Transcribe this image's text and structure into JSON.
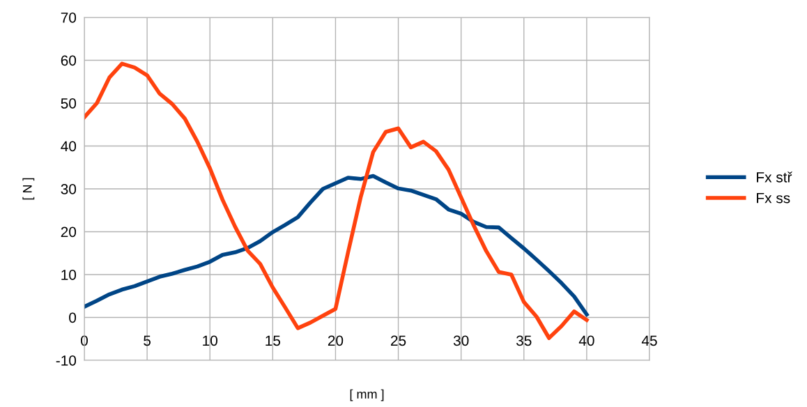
{
  "chart_data": {
    "type": "line",
    "xlabel": "[ mm ]",
    "ylabel": "[ N ]",
    "x": [
      0,
      1,
      2,
      3,
      4,
      5,
      6,
      7,
      8,
      9,
      10,
      11,
      12,
      13,
      14,
      15,
      16,
      17,
      18,
      19,
      20,
      21,
      22,
      23,
      24,
      25,
      26,
      27,
      28,
      29,
      30,
      31,
      32,
      33,
      34,
      35,
      36,
      37,
      38,
      39,
      40
    ],
    "series": [
      {
        "name": "Fx stř",
        "color": "#004586",
        "values": [
          2.5,
          3.9,
          5.4,
          6.5,
          7.3,
          8.4,
          9.5,
          10.2,
          11.1,
          11.9,
          13.0,
          14.6,
          15.2,
          16.2,
          17.8,
          19.9,
          21.6,
          23.4,
          26.8,
          30.0,
          31.3,
          32.6,
          32.3,
          33.0,
          31.5,
          30.1,
          29.6,
          28.6,
          27.6,
          25.2,
          24.2,
          22.3,
          21.1,
          21.0,
          18.5,
          16.1,
          13.5,
          10.8,
          8.0,
          4.9,
          0.7
        ]
      },
      {
        "name": "Fx ss",
        "color": "#ff420e",
        "values": [
          46.7,
          50.0,
          56.0,
          59.2,
          58.3,
          56.5,
          52.2,
          49.8,
          46.4,
          41.0,
          34.8,
          27.5,
          21.2,
          15.6,
          12.5,
          7.0,
          2.3,
          -2.5,
          -1.2,
          0.4,
          2.0,
          15.2,
          28.0,
          38.6,
          43.3,
          44.1,
          39.7,
          41.0,
          38.8,
          34.5,
          28.0,
          21.5,
          15.5,
          10.6,
          10.0,
          3.6,
          0.2,
          -4.8,
          -2.0,
          1.4,
          -0.6
        ]
      }
    ],
    "xlim": [
      0,
      45
    ],
    "xticks": [
      0,
      5,
      10,
      15,
      20,
      25,
      30,
      35,
      40,
      45
    ],
    "ylim": [
      -10,
      70
    ],
    "yticks": [
      -10,
      0,
      10,
      20,
      30,
      40,
      50,
      60,
      70
    ],
    "grid": true,
    "legend": "right",
    "marker": "none",
    "line_style": "solid"
  }
}
